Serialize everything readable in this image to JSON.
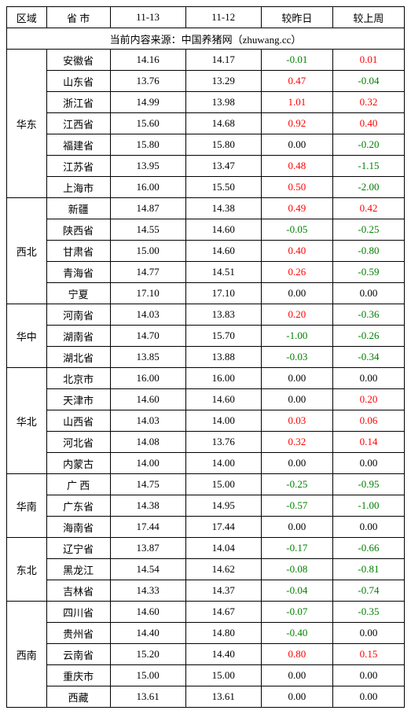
{
  "columns": [
    "区域",
    "省 市",
    "11-13",
    "11-12",
    "较昨日",
    "较上周"
  ],
  "source_text": "当前内容来源：中国养猪网（zhuwang.cc）",
  "colors": {
    "positive": "#ff0000",
    "negative": "#008000",
    "zero": "#000000",
    "border": "#000000",
    "background": "#ffffff"
  },
  "regions": [
    {
      "name": "华东",
      "rows": [
        {
          "prov": "安徽省",
          "d1": "14.16",
          "d2": "14.17",
          "dd": "-0.01",
          "dw": "0.01"
        },
        {
          "prov": "山东省",
          "d1": "13.76",
          "d2": "13.29",
          "dd": "0.47",
          "dw": "-0.04"
        },
        {
          "prov": "浙江省",
          "d1": "14.99",
          "d2": "13.98",
          "dd": "1.01",
          "dw": "0.32"
        },
        {
          "prov": "江西省",
          "d1": "15.60",
          "d2": "14.68",
          "dd": "0.92",
          "dw": "0.40"
        },
        {
          "prov": "福建省",
          "d1": "15.80",
          "d2": "15.80",
          "dd": "0.00",
          "dw": "-0.20"
        },
        {
          "prov": "江苏省",
          "d1": "13.95",
          "d2": "13.47",
          "dd": "0.48",
          "dw": "-1.15"
        },
        {
          "prov": "上海市",
          "d1": "16.00",
          "d2": "15.50",
          "dd": "0.50",
          "dw": "-2.00"
        }
      ]
    },
    {
      "name": "西北",
      "rows": [
        {
          "prov": "新疆",
          "d1": "14.87",
          "d2": "14.38",
          "dd": "0.49",
          "dw": "0.42"
        },
        {
          "prov": "陕西省",
          "d1": "14.55",
          "d2": "14.60",
          "dd": "-0.05",
          "dw": "-0.25"
        },
        {
          "prov": "甘肃省",
          "d1": "15.00",
          "d2": "14.60",
          "dd": "0.40",
          "dw": "-0.80"
        },
        {
          "prov": "青海省",
          "d1": "14.77",
          "d2": "14.51",
          "dd": "0.26",
          "dw": "-0.59"
        },
        {
          "prov": "宁夏",
          "d1": "17.10",
          "d2": "17.10",
          "dd": "0.00",
          "dw": "0.00"
        }
      ]
    },
    {
      "name": "华中",
      "rows": [
        {
          "prov": "河南省",
          "d1": "14.03",
          "d2": "13.83",
          "dd": "0.20",
          "dw": "-0.36"
        },
        {
          "prov": "湖南省",
          "d1": "14.70",
          "d2": "15.70",
          "dd": "-1.00",
          "dw": "-0.26"
        },
        {
          "prov": "湖北省",
          "d1": "13.85",
          "d2": "13.88",
          "dd": "-0.03",
          "dw": "-0.34"
        }
      ]
    },
    {
      "name": "华北",
      "rows": [
        {
          "prov": "北京市",
          "d1": "16.00",
          "d2": "16.00",
          "dd": "0.00",
          "dw": "0.00"
        },
        {
          "prov": "天津市",
          "d1": "14.60",
          "d2": "14.60",
          "dd": "0.00",
          "dw": "0.20"
        },
        {
          "prov": "山西省",
          "d1": "14.03",
          "d2": "14.00",
          "dd": "0.03",
          "dw": "0.06"
        },
        {
          "prov": "河北省",
          "d1": "14.08",
          "d2": "13.76",
          "dd": "0.32",
          "dw": "0.14"
        },
        {
          "prov": "内蒙古",
          "d1": "14.00",
          "d2": "14.00",
          "dd": "0.00",
          "dw": "0.00"
        }
      ]
    },
    {
      "name": "华南",
      "rows": [
        {
          "prov": "广 西",
          "d1": "14.75",
          "d2": "15.00",
          "dd": "-0.25",
          "dw": "-0.95"
        },
        {
          "prov": "广东省",
          "d1": "14.38",
          "d2": "14.95",
          "dd": "-0.57",
          "dw": "-1.00"
        },
        {
          "prov": "海南省",
          "d1": "17.44",
          "d2": "17.44",
          "dd": "0.00",
          "dw": "0.00"
        }
      ]
    },
    {
      "name": "东北",
      "rows": [
        {
          "prov": "辽宁省",
          "d1": "13.87",
          "d2": "14.04",
          "dd": "-0.17",
          "dw": "-0.66"
        },
        {
          "prov": "黑龙江",
          "d1": "14.54",
          "d2": "14.62",
          "dd": "-0.08",
          "dw": "-0.81"
        },
        {
          "prov": "吉林省",
          "d1": "14.33",
          "d2": "14.37",
          "dd": "-0.04",
          "dw": "-0.74"
        }
      ]
    },
    {
      "name": "西南",
      "rows": [
        {
          "prov": "四川省",
          "d1": "14.60",
          "d2": "14.67",
          "dd": "-0.07",
          "dw": "-0.35"
        },
        {
          "prov": "贵州省",
          "d1": "14.40",
          "d2": "14.80",
          "dd": "-0.40",
          "dw": "0.00"
        },
        {
          "prov": "云南省",
          "d1": "15.20",
          "d2": "14.40",
          "dd": "0.80",
          "dw": "0.15"
        },
        {
          "prov": "重庆市",
          "d1": "15.00",
          "d2": "15.00",
          "dd": "0.00",
          "dw": "0.00"
        },
        {
          "prov": "西藏",
          "d1": "13.61",
          "d2": "13.61",
          "dd": "0.00",
          "dw": "0.00"
        }
      ]
    }
  ]
}
